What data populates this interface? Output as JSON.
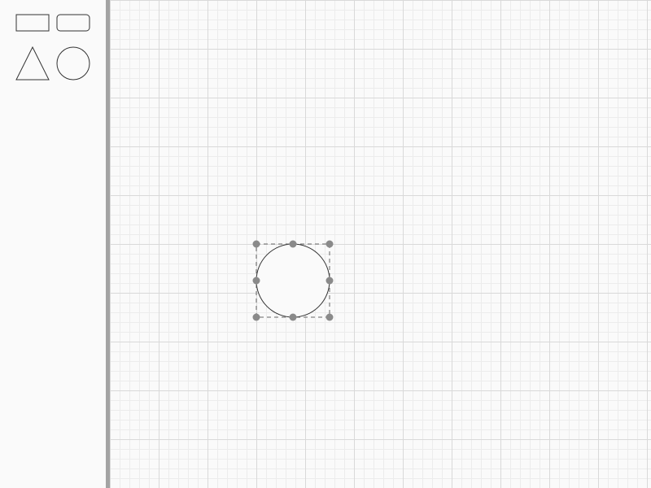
{
  "palette": {
    "tools": [
      {
        "name": "rectangle"
      },
      {
        "name": "rounded-rectangle"
      },
      {
        "name": "triangle"
      },
      {
        "name": "ellipse"
      }
    ]
  },
  "canvas": {
    "grid": true,
    "selected_shape": "ellipse",
    "selection_handles": 8
  },
  "colors": {
    "shape_stroke": "#333333",
    "handle_fill": "#8a8a8a",
    "selection_border": "#666666",
    "divider": "#a3a3a3"
  }
}
